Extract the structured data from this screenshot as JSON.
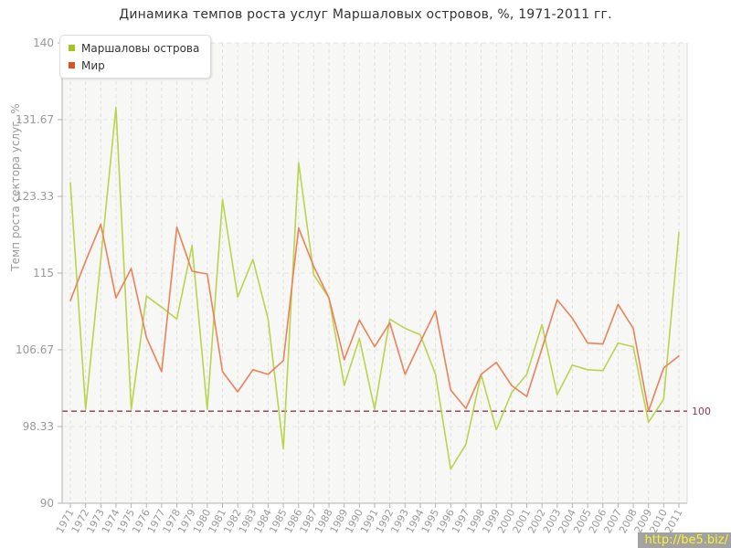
{
  "title": "Динамика темпов роста услуг Маршаловых островов, %, 1971-2011 гг.",
  "watermark": "http://be5.biz/",
  "legend": [
    {
      "label": "Маршаловы острова",
      "color": "#a2c41e"
    },
    {
      "label": "Мир",
      "color": "#dc5226"
    }
  ],
  "chart_data": {
    "type": "line",
    "title": "Динамика темпов роста услуг Маршаловых островов, %, 1971-2011 гг.",
    "xlabel": "",
    "ylabel": "Темп роста сектора услуг, %",
    "ylim": [
      90,
      140
    ],
    "yticks": [
      90,
      98.33,
      106.67,
      115,
      123.33,
      131.67,
      140
    ],
    "ytick_labels": [
      "90",
      "98.33",
      "106.67",
      "115",
      "123.33",
      "131.67",
      "140"
    ],
    "grid": true,
    "legend_position": "top-left",
    "x": [
      1971,
      1972,
      1973,
      1974,
      1975,
      1976,
      1977,
      1978,
      1979,
      1980,
      1981,
      1982,
      1983,
      1984,
      1985,
      1986,
      1987,
      1988,
      1989,
      1990,
      1991,
      1992,
      1993,
      1994,
      1995,
      1996,
      1997,
      1998,
      1999,
      2000,
      2001,
      2002,
      2003,
      2004,
      2005,
      2006,
      2007,
      2008,
      2009,
      2010,
      2011
    ],
    "series": [
      {
        "name": "Маршаловы острова",
        "swatch_color": "#a2c41e",
        "line_color": "#b9d44e",
        "values": [
          124.8,
          100.2,
          116.5,
          133.0,
          100.2,
          112.5,
          111.3,
          110.0,
          118.0,
          100.2,
          123.0,
          112.4,
          116.5,
          110.0,
          95.9,
          127.0,
          114.8,
          112.3,
          102.8,
          107.9,
          100.2,
          110.0,
          109.0,
          108.3,
          104.0,
          93.7,
          96.4,
          104.0,
          98.0,
          102.0,
          104.0,
          109.4,
          101.8,
          105.0,
          104.5,
          104.4,
          107.4,
          107.0,
          98.8,
          101.3,
          119.4
        ]
      },
      {
        "name": "Мир",
        "swatch_color": "#dc5226",
        "line_color": "#ea825a",
        "values": [
          112.0,
          116.3,
          120.3,
          112.3,
          115.5,
          108.0,
          104.3,
          120.0,
          115.2,
          114.9,
          104.3,
          102.1,
          104.5,
          104.0,
          105.5,
          119.9,
          115.7,
          112.3,
          105.6,
          109.9,
          107.0,
          109.6,
          104.0,
          107.5,
          110.9,
          102.3,
          100.3,
          104.0,
          105.3,
          102.8,
          101.6,
          106.8,
          112.1,
          110.1,
          107.4,
          107.3,
          111.6,
          109.0,
          100.0,
          104.7,
          106.0
        ]
      }
    ],
    "threshold": {
      "value": 100,
      "label": "100",
      "color": "#8e3a4e"
    }
  }
}
